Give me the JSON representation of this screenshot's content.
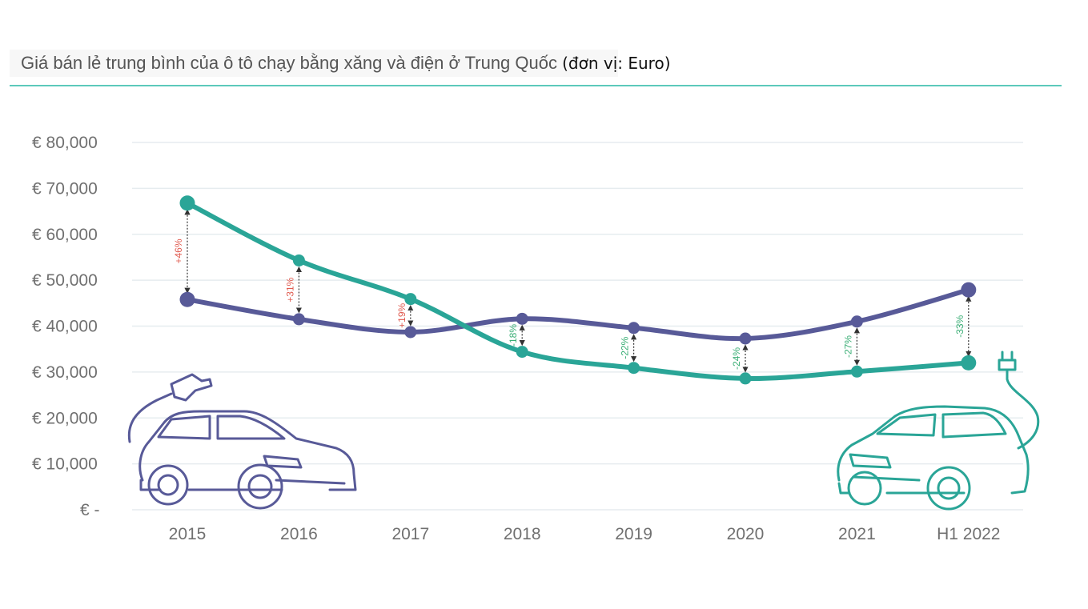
{
  "title": "Giá bán lẻ trung bình của ô tô chạy bằng xăng và điện ở Trung Quốc",
  "title_unit": "(đơn vị: Euro)",
  "colors": {
    "ev": "#2aa597",
    "gas": "#585a98",
    "grid": "#e6ecef",
    "pct_positive": "#e05a4f",
    "pct_negative": "#3aae75",
    "title_rule": "#5cc9bb"
  },
  "icons": {
    "gas_car": "gas-car-icon",
    "fuel_pump": "fuel-nozzle-icon",
    "electric_car": "electric-car-icon",
    "plug": "plug-icon"
  },
  "chart_data": {
    "type": "line",
    "categories": [
      "2015",
      "2016",
      "2017",
      "2018",
      "2019",
      "2020",
      "2021",
      "H1 2022"
    ],
    "ylim": [
      0,
      80000
    ],
    "yticks": [
      0,
      10000,
      20000,
      30000,
      40000,
      50000,
      60000,
      70000,
      80000
    ],
    "ytick_labels": [
      "€ -",
      "€ 10,000",
      "€ 20,000",
      "€ 30,000",
      "€ 40,000",
      "€ 50,000",
      "€ 60,000",
      "€ 70,000",
      "€ 80,000"
    ],
    "grid": true,
    "series": [
      {
        "key": "ev",
        "values": [
          66800,
          54300,
          45900,
          34400,
          30900,
          28600,
          30100,
          32000
        ]
      },
      {
        "key": "gas",
        "values": [
          45800,
          41500,
          38700,
          41600,
          39600,
          37300,
          41000,
          47900
        ]
      }
    ],
    "differences": [
      "+46%",
      "+31%",
      "+19%",
      "-18%",
      "-22%",
      "-24%",
      "-27%",
      "-33%"
    ]
  }
}
